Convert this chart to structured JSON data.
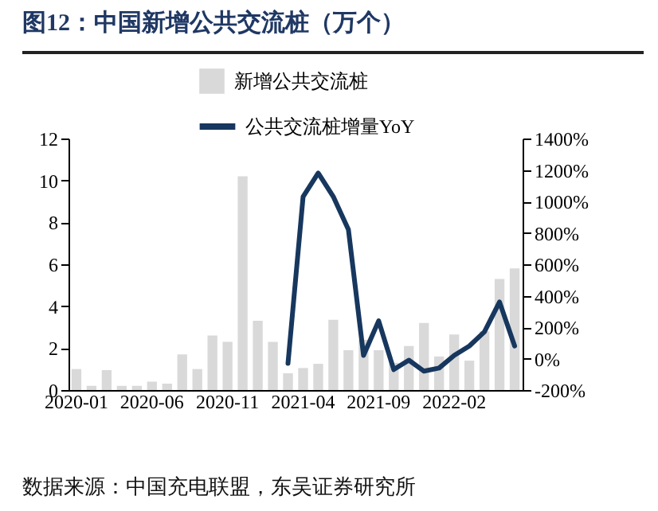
{
  "chart_data": {
    "type": "bar",
    "title": "图12：中国新增公共交流桩（万个）",
    "categories": [
      "2020-01",
      null,
      null,
      null,
      null,
      "2020-06",
      null,
      null,
      null,
      null,
      "2020-11",
      null,
      null,
      null,
      null,
      "2021-04",
      null,
      null,
      null,
      null,
      "2021-09",
      null,
      null,
      null,
      null,
      "2022-02",
      null,
      null,
      null,
      null
    ],
    "series": [
      {
        "name": "新增公共交流桩",
        "color": "#d9d9d9",
        "values": [
          1.0,
          0.2,
          0.95,
          0.2,
          0.2,
          0.4,
          0.3,
          1.7,
          1.0,
          2.6,
          2.3,
          10.2,
          3.3,
          2.3,
          0.8,
          1.05,
          1.25,
          3.35,
          1.9,
          2.4,
          1.9,
          1.3,
          2.1,
          3.2,
          1.6,
          2.65,
          1.4,
          2.8,
          5.3,
          5.8
        ]
      },
      {
        "name": "公共交流桩增量YoY",
        "type": "line",
        "axis": "y2",
        "color": "#17375e",
        "values": [
          null,
          null,
          null,
          null,
          null,
          null,
          null,
          null,
          null,
          null,
          null,
          null,
          null,
          null,
          -30,
          1030,
          1180,
          1030,
          820,
          20,
          240,
          -70,
          -10,
          -80,
          -60,
          20,
          80,
          170,
          360,
          80
        ]
      }
    ],
    "ylim": [
      0,
      12
    ],
    "yticks": [
      0,
      2,
      4,
      6,
      8,
      10,
      12
    ],
    "y2lim": [
      -200,
      1400
    ],
    "y2ticks": [
      {
        "value": -200,
        "label": "-200%"
      },
      {
        "value": 0,
        "label": "0%"
      },
      {
        "value": 200,
        "label": "200%"
      },
      {
        "value": 400,
        "label": "400%"
      },
      {
        "value": 600,
        "label": "600%"
      },
      {
        "value": 800,
        "label": "800%"
      },
      {
        "value": 1000,
        "label": "1000%"
      },
      {
        "value": 1200,
        "label": "1200%"
      },
      {
        "value": 1400,
        "label": "1400%"
      }
    ],
    "legend": "top",
    "grid": false,
    "annotations": [
      "数据来源：中国充电联盟，东吴证券研究所"
    ]
  }
}
